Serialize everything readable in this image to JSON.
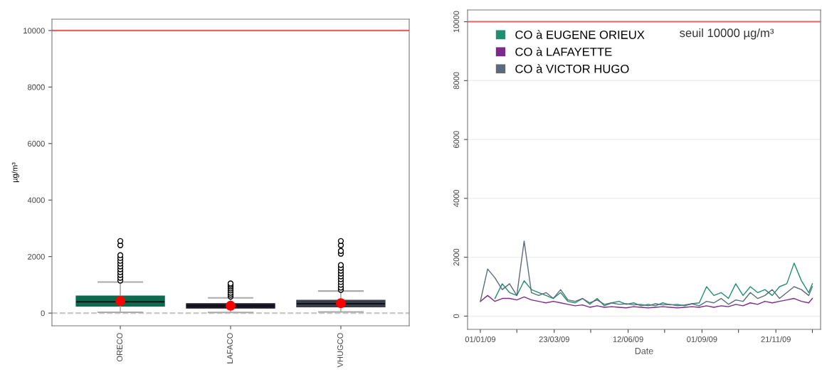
{
  "chart_data": [
    {
      "type": "box",
      "ylabel": "µg/m³",
      "categories": [
        "ORECO",
        "LAFACO",
        "VHUGCO"
      ],
      "colors": [
        "#0b6b4f",
        "#1c1a2c",
        "#3a3f4c"
      ],
      "boxes": [
        {
          "low": 30,
          "q1": 250,
          "median": 400,
          "q3": 600,
          "high": 1100,
          "mean": 430,
          "outliers": [
            1150,
            1250,
            1350,
            1450,
            1550,
            1650,
            1750,
            1850,
            1950,
            2050,
            2400,
            2550
          ]
        },
        {
          "low": 20,
          "q1": 180,
          "median": 250,
          "q3": 330,
          "high": 540,
          "mean": 260,
          "outliers": [
            580,
            650,
            720,
            800,
            870,
            940,
            1000,
            1050
          ]
        },
        {
          "low": 40,
          "q1": 220,
          "median": 330,
          "q3": 450,
          "high": 780,
          "mean": 350,
          "outliers": [
            820,
            900,
            1000,
            1100,
            1200,
            1300,
            1400,
            1500,
            1600,
            1700,
            2100,
            2200,
            2400,
            2550
          ]
        }
      ],
      "ylim": [
        -450,
        10400
      ],
      "yticks": [
        0,
        2000,
        4000,
        6000,
        8000,
        10000
      ],
      "ref_lines": [
        {
          "axis": "y",
          "value": 10000,
          "color": "#f06060",
          "line_style": "solid"
        },
        {
          "axis": "y",
          "value": 0,
          "color": "#c8c8c8",
          "line_style": "dashed"
        }
      ]
    },
    {
      "type": "line",
      "xlabel": "Date",
      "legend": "top left",
      "grid": "y",
      "x": [
        "2009-01-01",
        "2009-01-09",
        "2009-01-17",
        "2009-01-25",
        "2009-02-02",
        "2009-02-10",
        "2009-02-18",
        "2009-02-26",
        "2009-03-06",
        "2009-03-14",
        "2009-03-22",
        "2009-03-30",
        "2009-04-07",
        "2009-04-15",
        "2009-04-23",
        "2009-05-01",
        "2009-05-09",
        "2009-05-17",
        "2009-05-25",
        "2009-06-02",
        "2009-06-10",
        "2009-06-18",
        "2009-06-26",
        "2009-07-04",
        "2009-07-12",
        "2009-07-20",
        "2009-07-28",
        "2009-08-05",
        "2009-08-13",
        "2009-08-21",
        "2009-08-29",
        "2009-09-06",
        "2009-09-14",
        "2009-09-22",
        "2009-09-30",
        "2009-10-08",
        "2009-10-16",
        "2009-10-24",
        "2009-11-01",
        "2009-11-09",
        "2009-11-17",
        "2009-11-25",
        "2009-12-03",
        "2009-12-11",
        "2009-12-19",
        "2009-12-27",
        "2009-12-31"
      ],
      "series": [
        {
          "name": "CO à EUGENE ORIEUX",
          "color": "#1f8f6f",
          "values": [
            null,
            null,
            600,
            1100,
            800,
            700,
            1200,
            900,
            800,
            700,
            600,
            800,
            500,
            450,
            600,
            400,
            600,
            350,
            450,
            500,
            400,
            450,
            350,
            400,
            350,
            450,
            380,
            400,
            350,
            420,
            450,
            1000,
            700,
            800,
            600,
            1100,
            700,
            1000,
            800,
            900,
            700,
            1000,
            1100,
            1800,
            1200,
            800,
            1100
          ]
        },
        {
          "name": "CO à LAFAYETTE",
          "color": "#7b2a8a",
          "values": [
            500,
            700,
            500,
            600,
            600,
            550,
            650,
            550,
            500,
            450,
            500,
            450,
            400,
            350,
            380,
            300,
            350,
            300,
            320,
            300,
            280,
            320,
            300,
            280,
            300,
            320,
            300,
            280,
            300,
            320,
            300,
            350,
            300,
            350,
            320,
            400,
            350,
            450,
            400,
            500,
            450,
            500,
            550,
            600,
            500,
            450,
            600
          ]
        },
        {
          "name": "CO à VICTOR HUGO",
          "color": "#5b6b7c",
          "values": [
            500,
            1600,
            1300,
            900,
            1100,
            700,
            2550,
            800,
            700,
            800,
            600,
            900,
            550,
            500,
            600,
            450,
            550,
            400,
            450,
            400,
            420,
            380,
            400,
            350,
            420,
            380,
            400,
            350,
            380,
            420,
            350,
            500,
            450,
            600,
            400,
            550,
            500,
            800,
            600,
            700,
            900,
            600,
            800,
            1000,
            900,
            700,
            1000
          ]
        }
      ],
      "ylim": [
        -450,
        10400
      ],
      "yticks": [
        0,
        2000,
        4000,
        6000,
        8000,
        10000
      ],
      "xlim": [
        "2008-12-18",
        "2010-01-09"
      ],
      "xticks": [
        {
          "value": "2009-01-01",
          "label": "01/01/09"
        },
        {
          "value": "2009-02-10",
          "label": null
        },
        {
          "value": "2009-03-23",
          "label": "23/03/09"
        },
        {
          "value": "2009-05-02",
          "label": null
        },
        {
          "value": "2009-06-12",
          "label": "12/06/09"
        },
        {
          "value": "2009-07-22",
          "label": null
        },
        {
          "value": "2009-09-01",
          "label": "01/09/09"
        },
        {
          "value": "2009-10-11",
          "label": null
        },
        {
          "value": "2009-11-21",
          "label": "21/11/09"
        },
        {
          "value": "2009-12-31",
          "label": null
        }
      ],
      "ref_lines": [
        {
          "axis": "y",
          "value": 10000,
          "color": "#f06060",
          "line_style": "solid",
          "label": "seuil 10000 µg/m³"
        }
      ]
    }
  ]
}
